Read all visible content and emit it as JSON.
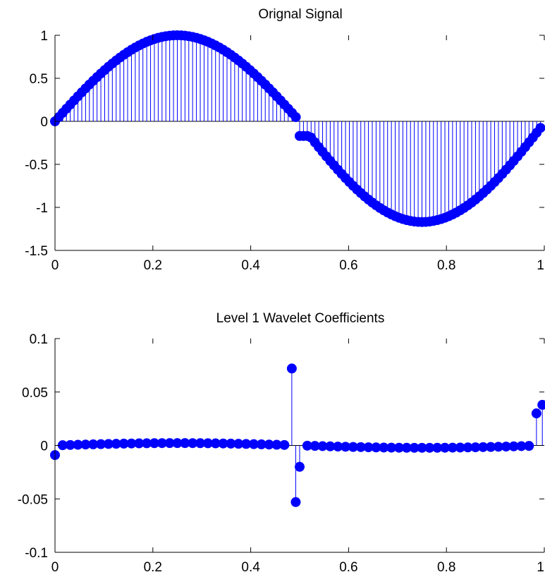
{
  "chart_data": [
    {
      "type": "stem",
      "title": "Orignal Signal",
      "xlim": [
        0,
        1
      ],
      "ylim": [
        -1.5,
        1
      ],
      "xticks": [
        0,
        0.2,
        0.4,
        0.6,
        0.8,
        1
      ],
      "xtick_labels": [
        "0",
        "0.2",
        "0.4",
        "0.6",
        "0.8",
        "1"
      ],
      "yticks": [
        -1.5,
        -1,
        -0.5,
        0,
        0.5,
        1
      ],
      "ytick_labels": [
        "-1.5",
        "-1",
        "-0.5",
        "0",
        "0.5",
        "1"
      ],
      "color": "#0000ff",
      "grid": false,
      "series": [
        {
          "description_formula": "sin(2*pi*x) for x<0.5 (peak 1.0); for x>=0.5 sin(2*pi*x)*1.15 - 0.02 (min about -1.15)",
          "n_points": 128,
          "x_start": 0,
          "x_step": 0.0078125,
          "pieces": [
            {
              "x_range": [
                0,
                0.492
              ],
              "amplitude": 1.0,
              "offset": 0
            },
            {
              "x_range": [
                0.5,
                0.992
              ],
              "amplitude": 1.15,
              "offset": -0.02,
              "jump_at_0_5": -0.17
            }
          ]
        }
      ]
    },
    {
      "type": "stem",
      "title": "Level 1 Wavelet Coefficients",
      "xlim": [
        0,
        1
      ],
      "ylim": [
        -0.1,
        0.1
      ],
      "xticks": [
        0,
        0.2,
        0.4,
        0.6,
        0.8,
        1
      ],
      "xtick_labels": [
        "0",
        "0.2",
        "0.4",
        "0.6",
        "0.8",
        "1"
      ],
      "yticks": [
        -0.1,
        -0.05,
        0,
        0.05,
        0.1
      ],
      "ytick_labels": [
        "-0.1",
        "-0.05",
        "0",
        "0.05",
        "0.1"
      ],
      "color": "#0000ff",
      "grid": false,
      "series": [
        {
          "n_points": 64,
          "x_start": 0,
          "x_step": 0.015625,
          "baseline_shape": "small smooth ripple about 0.002 in magnitude, positive near 0.25, negative near 0.75",
          "spikes": [
            {
              "x": 0.0,
              "y": -0.009
            },
            {
              "x": 0.484,
              "y": 0.072
            },
            {
              "x": 0.492,
              "y": -0.053
            },
            {
              "x": 0.5,
              "y": -0.02
            },
            {
              "x": 0.984,
              "y": 0.03
            },
            {
              "x": 0.996,
              "y": 0.038
            }
          ]
        }
      ]
    }
  ]
}
